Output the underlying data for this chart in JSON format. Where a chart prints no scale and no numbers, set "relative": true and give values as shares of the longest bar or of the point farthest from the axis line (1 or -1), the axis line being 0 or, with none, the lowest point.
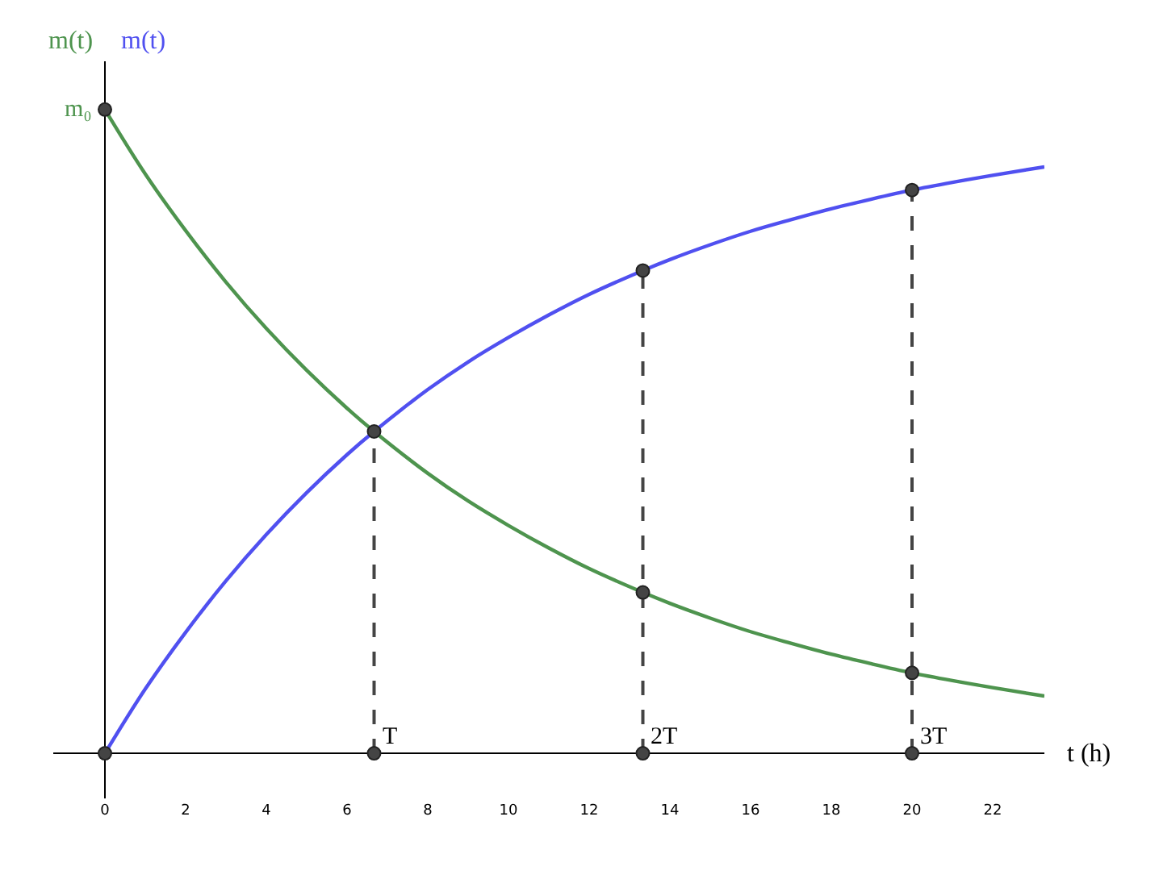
{
  "chart_data": {
    "type": "line",
    "relative": true,
    "xlabel": "t (h)",
    "x": [
      0,
      1,
      2,
      3,
      4,
      5,
      6,
      6.67,
      8,
      9,
      10,
      11,
      12,
      13.33,
      14,
      15,
      16,
      17,
      18,
      19,
      20,
      21,
      22,
      23.28
    ],
    "xlim": [
      -1.28,
      23.28
    ],
    "xticks": [
      0,
      2,
      4,
      6,
      8,
      10,
      12,
      14,
      16,
      18,
      20,
      22
    ],
    "series": [
      {
        "name": "m(t)",
        "color": "#4e944e",
        "values": [
          1,
          0.9,
          0.812,
          0.732,
          0.66,
          0.595,
          0.536,
          0.5,
          0.435,
          0.392,
          0.354,
          0.319,
          0.287,
          0.25,
          0.233,
          0.21,
          0.189,
          0.171,
          0.154,
          0.139,
          0.125,
          0.113,
          0.102,
          0.089
        ],
        "marker": "none"
      },
      {
        "name": "m(t)",
        "color": "#5050f0",
        "values": [
          0,
          0.1,
          0.188,
          0.268,
          0.34,
          0.405,
          0.464,
          0.5,
          0.565,
          0.608,
          0.646,
          0.681,
          0.713,
          0.75,
          0.767,
          0.79,
          0.811,
          0.829,
          0.846,
          0.861,
          0.875,
          0.887,
          0.898,
          0.911
        ],
        "marker": "none"
      },
      {
        "type": "scatter",
        "color": "#444444",
        "x": [
          0,
          0,
          6.67,
          6.67,
          13.33,
          13.33,
          13.33,
          20,
          20,
          20
        ],
        "values": [
          1,
          0,
          0.5,
          0,
          0.75,
          0.25,
          0,
          0.875,
          0.125,
          0
        ],
        "marker": "circle"
      }
    ],
    "line_style": "solid",
    "grid": false,
    "legend": false,
    "ref_lines": [
      {
        "axis": "x",
        "value": 6.67,
        "label": "T",
        "line_style": "dashed",
        "color": "#444444"
      },
      {
        "axis": "x",
        "value": 13.33,
        "label": "2T",
        "line_style": "dashed",
        "color": "#444444"
      },
      {
        "axis": "x",
        "value": 20,
        "label": "3T",
        "line_style": "dashed",
        "color": "#444444"
      }
    ],
    "annotations": [
      {
        "text": "m₀",
        "x": 0,
        "y": 1
      }
    ]
  }
}
